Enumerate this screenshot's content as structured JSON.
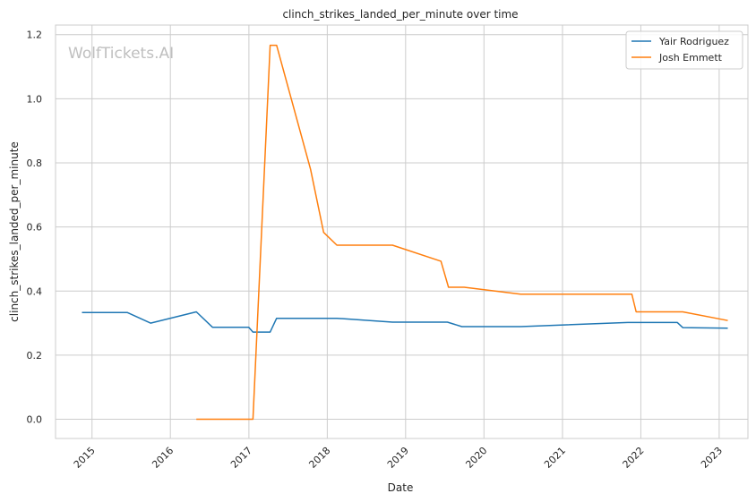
{
  "chart_data": {
    "type": "line",
    "title": "clinch_strikes_landed_per_minute over time",
    "xlabel": "Date",
    "ylabel": "clinch_strikes_landed_per_minute",
    "watermark": "WolfTickets.AI",
    "x_ticks": [
      "2015",
      "2016",
      "2017",
      "2018",
      "2019",
      "2020",
      "2021",
      "2022",
      "2023"
    ],
    "y_ticks": [
      "0.0",
      "0.2",
      "0.4",
      "0.6",
      "0.8",
      "1.0",
      "1.2"
    ],
    "xlim": [
      "2014-07-15",
      "2023-05-15"
    ],
    "ylim": [
      -0.06,
      1.23
    ],
    "grid": true,
    "legend_position": "top-right",
    "series": [
      {
        "name": "Yair Rodriguez",
        "color": "#1f77b4",
        "points": [
          [
            "2014-11-15",
            0.333
          ],
          [
            "2015-06-15",
            0.333
          ],
          [
            "2015-10-01",
            0.3
          ],
          [
            "2016-05-01",
            0.335
          ],
          [
            "2016-07-15",
            0.287
          ],
          [
            "2016-12-31",
            0.287
          ],
          [
            "2017-01-20",
            0.272
          ],
          [
            "2017-04-10",
            0.272
          ],
          [
            "2017-05-10",
            0.315
          ],
          [
            "2018-02-15",
            0.315
          ],
          [
            "2018-11-01",
            0.303
          ],
          [
            "2019-07-15",
            0.303
          ],
          [
            "2019-09-20",
            0.289
          ],
          [
            "2020-06-20",
            0.289
          ],
          [
            "2021-11-01",
            0.302
          ],
          [
            "2022-06-20",
            0.302
          ],
          [
            "2022-07-15",
            0.286
          ],
          [
            "2023-02-10",
            0.284
          ]
        ]
      },
      {
        "name": "Josh Emmett",
        "color": "#ff7f0e",
        "points": [
          [
            "2016-05-01",
            0.0
          ],
          [
            "2017-01-20",
            0.0
          ],
          [
            "2017-04-10",
            1.167
          ],
          [
            "2017-05-10",
            1.167
          ],
          [
            "2017-10-15",
            0.78
          ],
          [
            "2017-12-15",
            0.583
          ],
          [
            "2018-02-15",
            0.543
          ],
          [
            "2018-11-01",
            0.543
          ],
          [
            "2019-06-15",
            0.493
          ],
          [
            "2019-07-20",
            0.412
          ],
          [
            "2019-10-01",
            0.412
          ],
          [
            "2020-06-20",
            0.39
          ],
          [
            "2021-11-20",
            0.39
          ],
          [
            "2021-12-10",
            0.335
          ],
          [
            "2022-07-15",
            0.335
          ],
          [
            "2023-02-10",
            0.308
          ]
        ]
      }
    ]
  }
}
